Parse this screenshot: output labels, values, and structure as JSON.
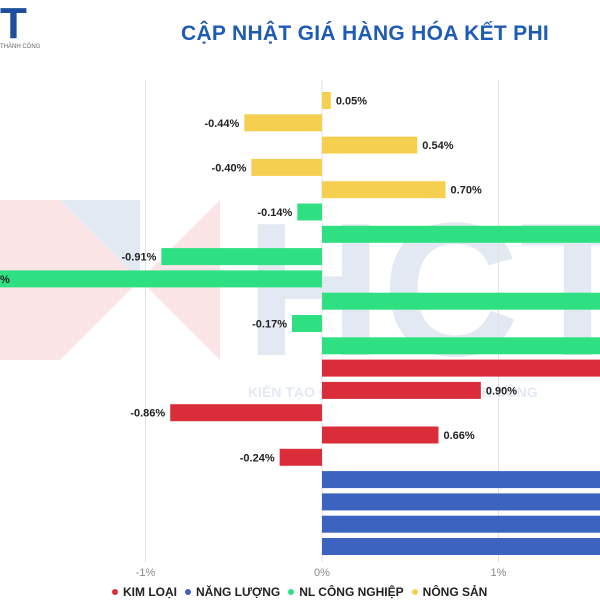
{
  "header": {
    "logo_letter": "T",
    "logo_caption": "THÀNH CÔNG",
    "title": "CẬP NHẬT GIÁ HÀNG HÓA KẾT PHI"
  },
  "watermark": {
    "letters": "HCT",
    "tagline": "KIẾN TẠO GIÁ TRỊ - CHIA SẺ THÀNH CÔNG"
  },
  "colors": {
    "Kim loại": "#d92d3a",
    "Năng lượng": "#3b63bf",
    "NL công nghiệp": "#2fe082",
    "Nông sản": "#f5cf4f"
  },
  "chart_data": {
    "type": "bar",
    "orientation": "horizontal",
    "xlim": [
      -1.85,
      1.6
    ],
    "xticks": [
      "-1%",
      "0%",
      "1%"
    ],
    "xtick_values": [
      -1,
      0,
      1
    ],
    "grid": true,
    "legend_position": "bottom",
    "legend": [
      "KIM LOẠI",
      "NĂNG LƯỢNG",
      "NL CÔNG NGHIỆP",
      "NÔNG SẢN"
    ],
    "bars": [
      {
        "group": "Nông sản",
        "value": 0.05,
        "label": "0.05%"
      },
      {
        "group": "Nông sản",
        "value": -0.44,
        "label": "-0.44%"
      },
      {
        "group": "Nông sản",
        "value": 0.54,
        "label": "0.54%"
      },
      {
        "group": "Nông sản",
        "value": -0.4,
        "label": "-0.40%"
      },
      {
        "group": "Nông sản",
        "value": 0.7,
        "label": "0.70%"
      },
      {
        "group": "NL công nghiệp",
        "value": -0.14,
        "label": "-0.14%"
      },
      {
        "group": "NL công nghiệp",
        "value": 1.6,
        "label": ""
      },
      {
        "group": "NL công nghiệp",
        "value": -0.91,
        "label": "-0.91%"
      },
      {
        "group": "NL công nghiệp",
        "value": -1.85,
        "label": "%"
      },
      {
        "group": "NL công nghiệp",
        "value": 1.6,
        "label": ""
      },
      {
        "group": "NL công nghiệp",
        "value": -0.17,
        "label": "-0.17%"
      },
      {
        "group": "NL công nghiệp",
        "value": 1.6,
        "label": ""
      },
      {
        "group": "Kim loại",
        "value": 1.6,
        "label": ""
      },
      {
        "group": "Kim loại",
        "value": 0.9,
        "label": "0.90%"
      },
      {
        "group": "Kim loại",
        "value": -0.86,
        "label": "-0.86%"
      },
      {
        "group": "Kim loại",
        "value": 0.66,
        "label": "0.66%"
      },
      {
        "group": "Kim loại",
        "value": -0.24,
        "label": "-0.24%"
      },
      {
        "group": "Năng lượng",
        "value": 1.6,
        "label": ""
      },
      {
        "group": "Năng lượng",
        "value": 1.6,
        "label": ""
      },
      {
        "group": "Năng lượng",
        "value": 1.6,
        "label": ""
      },
      {
        "group": "Năng lượng",
        "value": 1.6,
        "label": ""
      }
    ]
  }
}
